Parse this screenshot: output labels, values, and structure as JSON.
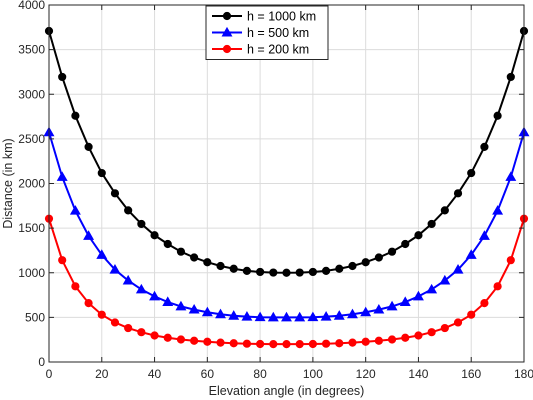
{
  "chart_data": {
    "type": "line",
    "xlabel": "Elevation angle (in degrees)",
    "ylabel": "Distance (in km)",
    "xlim": [
      0,
      180
    ],
    "ylim": [
      0,
      4000
    ],
    "xticks": [
      0,
      20,
      40,
      60,
      80,
      100,
      120,
      140,
      160,
      180
    ],
    "yticks": [
      0,
      500,
      1000,
      1500,
      2000,
      2500,
      3000,
      3500,
      4000
    ],
    "grid": true,
    "legend_position": "top-center",
    "x": [
      0,
      5,
      10,
      15,
      20,
      25,
      30,
      35,
      40,
      45,
      50,
      55,
      60,
      65,
      70,
      75,
      80,
      85,
      90,
      95,
      100,
      105,
      110,
      115,
      120,
      125,
      130,
      135,
      140,
      145,
      150,
      155,
      160,
      165,
      170,
      175,
      180
    ],
    "series": [
      {
        "name": "h = 1000 km",
        "color": "#000000",
        "marker": "circle",
        "values": [
          3709,
          3194,
          2759,
          2410,
          2117,
          1890,
          1699,
          1547,
          1420,
          1322,
          1236,
          1171,
          1118,
          1076,
          1045,
          1021,
          1009,
          1002,
          1000,
          1002,
          1009,
          1021,
          1045,
          1076,
          1118,
          1171,
          1236,
          1322,
          1420,
          1547,
          1699,
          1890,
          2117,
          2410,
          2759,
          3194,
          3709
        ]
      },
      {
        "name": "h = 500 km",
        "color": "#0000ff",
        "marker": "triangle",
        "values": [
          2574,
          2073,
          1695,
          1413,
          1200,
          1035,
          913,
          813,
          735,
          672,
          623,
          587,
          557,
          535,
          518,
          508,
          502,
          500,
          500,
          500,
          502,
          508,
          518,
          535,
          557,
          587,
          623,
          672,
          735,
          813,
          913,
          1035,
          1200,
          1413,
          1695,
          2073,
          2574
        ]
      },
      {
        "name": "h = 200 km",
        "color": "#ff0000",
        "marker": "circle",
        "values": [
          1606,
          1141,
          848,
          660,
          530,
          443,
          380,
          334,
          297,
          272,
          252,
          238,
          227,
          217,
          210,
          205,
          202,
          200,
          200,
          200,
          202,
          205,
          210,
          217,
          227,
          238,
          252,
          272,
          297,
          334,
          380,
          443,
          530,
          660,
          848,
          1141,
          1606
        ]
      }
    ]
  }
}
